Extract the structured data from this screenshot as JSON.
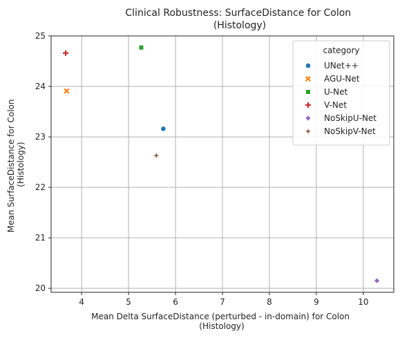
{
  "chart_data": {
    "type": "scatter",
    "title": [
      "Clinical Robustness: SurfaceDistance for Colon",
      "(Histology)"
    ],
    "xlabel": [
      "Mean Delta SurfaceDistance (perturbed - in-domain) for Colon",
      "(Histology)"
    ],
    "ylabel": [
      "Mean SurfaceDistance for Colon",
      "(Histology)"
    ],
    "xlim": [
      3.35,
      10.65
    ],
    "ylim": [
      19.92,
      25.0
    ],
    "xticks": [
      4,
      5,
      6,
      7,
      8,
      9,
      10
    ],
    "yticks": [
      20,
      21,
      22,
      23,
      24,
      25
    ],
    "grid": true,
    "legend": {
      "title": "category",
      "placement": "top-right"
    },
    "series": [
      {
        "name": "UNet++",
        "marker": "circle",
        "color": "#1f77b4",
        "points": [
          {
            "x": 5.74,
            "y": 23.16
          }
        ]
      },
      {
        "name": "AGU-Net",
        "marker": "x",
        "color": "#ff7f0e",
        "points": [
          {
            "x": 3.68,
            "y": 23.91
          }
        ]
      },
      {
        "name": "U-Net",
        "marker": "square",
        "color": "#2ca02c",
        "points": [
          {
            "x": 5.27,
            "y": 24.77
          }
        ]
      },
      {
        "name": "V-Net",
        "marker": "plus",
        "color": "#d62728",
        "points": [
          {
            "x": 3.66,
            "y": 24.66
          }
        ]
      },
      {
        "name": "NoSkipU-Net",
        "marker": "diamond",
        "color": "#9467bd",
        "points": [
          {
            "x": 10.29,
            "y": 20.15
          }
        ]
      },
      {
        "name": "NoSkipV-Net",
        "marker": "star4",
        "color": "#8c564b",
        "points": [
          {
            "x": 5.59,
            "y": 22.63
          }
        ]
      }
    ]
  }
}
